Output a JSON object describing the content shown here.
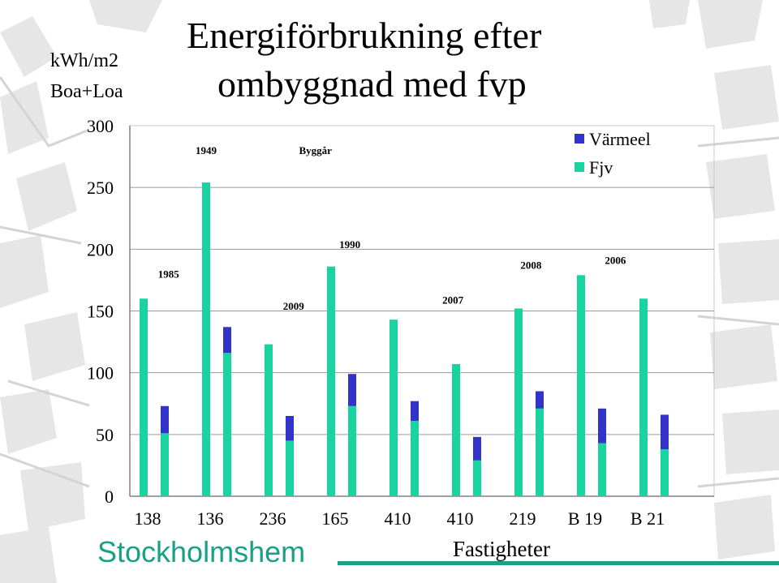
{
  "page": {
    "title_line1": "Energiförbrukning efter",
    "title_line2": "ombyggnad med fvp",
    "logo_text": "Stockholmshem",
    "colors": {
      "brand": "#19a085",
      "fjv": "#19d3a1",
      "varmeel": "#3333cc"
    }
  },
  "chart_data": {
    "type": "bar",
    "stacked": true,
    "title": "Energiförbrukning efter ombyggnad med fvp",
    "ylabel_line1": "kWh/m2",
    "ylabel_line2": "Boa+Loa",
    "xlabel": "Fastigheter",
    "ylim": [
      0,
      300
    ],
    "yticks": [
      0,
      50,
      100,
      150,
      200,
      250,
      300
    ],
    "categories": [
      "138",
      "136",
      "236",
      "165",
      "410",
      "410",
      "219",
      "B 19",
      "B 21"
    ],
    "legend": [
      "Värmeel",
      "Fjv"
    ],
    "legend_position": "top-right",
    "groups": [
      {
        "category": "138",
        "year": "1985",
        "before": 160,
        "after_fjv": 51,
        "after_varmeel": 22
      },
      {
        "category": "136",
        "year": "1949",
        "before": 254,
        "after_fjv": 116,
        "after_varmeel": 21
      },
      {
        "category": "236",
        "year": "2009",
        "before": 123,
        "after_fjv": 45,
        "after_varmeel": 20
      },
      {
        "category": "165",
        "year": "1990",
        "before": 186,
        "after_fjv": 73,
        "after_varmeel": 26
      },
      {
        "category": "410",
        "year": "Byggår",
        "before": 143,
        "after_fjv": 61,
        "after_varmeel": 16
      },
      {
        "category": "410",
        "year": "2007",
        "before": 107,
        "after_fjv": 29,
        "after_varmeel": 19
      },
      {
        "category": "219",
        "year": "2008",
        "before": 152,
        "after_fjv": 71,
        "after_varmeel": 14
      },
      {
        "category": "B 19",
        "year": "2006",
        "before": 179,
        "after_fjv": 43,
        "after_varmeel": 28
      },
      {
        "category": "B 21",
        "year": "",
        "before": 160,
        "after_fjv": 38,
        "after_varmeel": 28
      }
    ],
    "annotations": [
      {
        "text": "1949",
        "x_group": 1,
        "y": 277
      },
      {
        "text": "Byggår",
        "x_group": 2.75,
        "y": 277
      },
      {
        "text": "1990",
        "x_group": 3.3,
        "y": 201
      },
      {
        "text": "1985",
        "x_group": 0.4,
        "y": 177
      },
      {
        "text": "2008",
        "x_group": 6.2,
        "y": 184
      },
      {
        "text": "2006",
        "x_group": 7.55,
        "y": 188
      },
      {
        "text": "2009",
        "x_group": 2.4,
        "y": 151
      },
      {
        "text": "2007",
        "x_group": 4.95,
        "y": 156
      }
    ]
  }
}
